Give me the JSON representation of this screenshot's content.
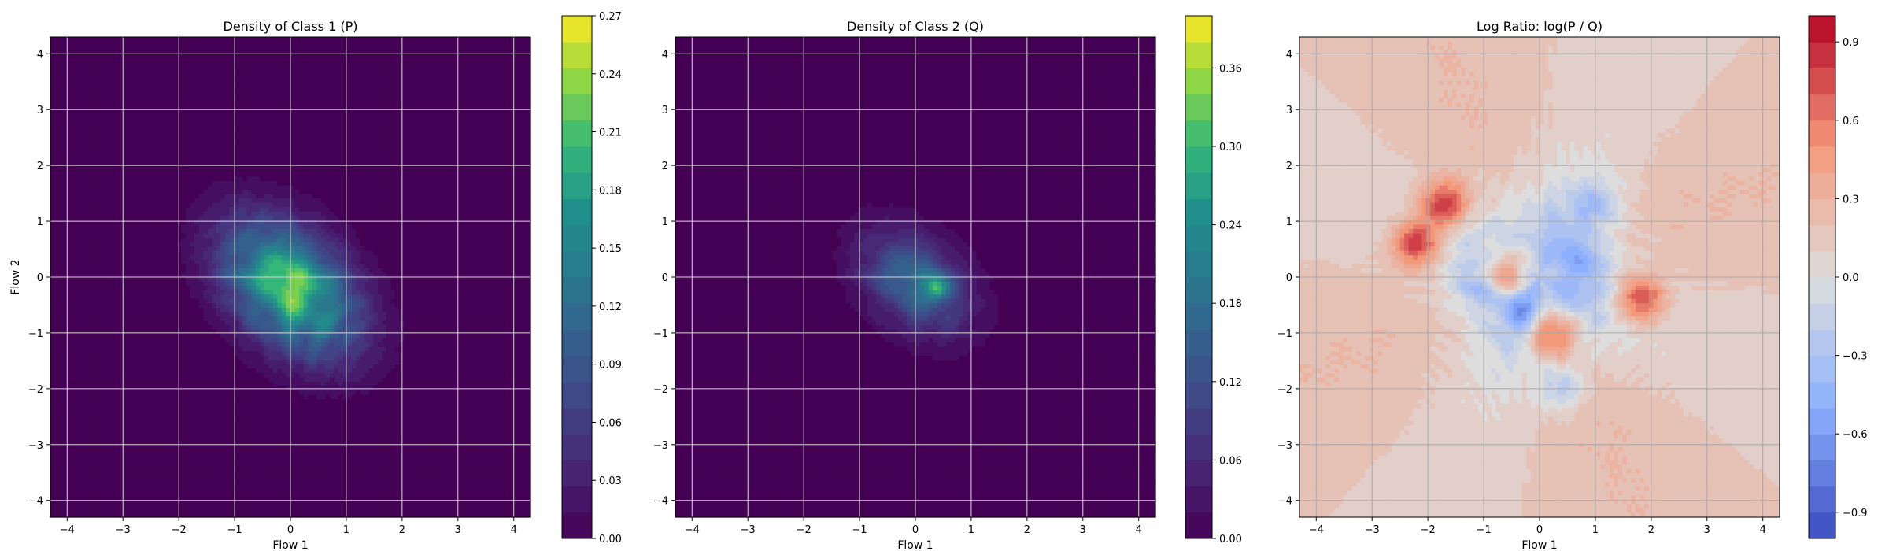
{
  "chart_data": [
    {
      "type": "heatmap",
      "title": "Density of Class 1 (P)",
      "xlabel": "Flow 1",
      "ylabel": "Flow 2",
      "xlim": [
        -4.3,
        4.3
      ],
      "ylim": [
        -4.3,
        4.3
      ],
      "xticks": [
        "−4",
        "−3",
        "−2",
        "−1",
        "0",
        "1",
        "2",
        "3",
        "4"
      ],
      "yticks": [
        "−4",
        "−3",
        "−2",
        "−1",
        "0",
        "1",
        "2",
        "3",
        "4"
      ],
      "grid": true,
      "colormap": "viridis",
      "colorbar": {
        "range": [
          0.0,
          0.27
        ],
        "ticks": [
          "0.00",
          "0.03",
          "0.06",
          "0.09",
          "0.12",
          "0.15",
          "0.18",
          "0.21",
          "0.24",
          "0.27"
        ]
      },
      "density": {
        "center": [
          0.0,
          -0.2
        ],
        "spread": [
          1.0,
          0.65
        ],
        "angle_deg": -45,
        "peak": 0.26
      }
    },
    {
      "type": "heatmap",
      "title": "Density of Class 2 (Q)",
      "xlabel": "Flow 1",
      "ylabel": "",
      "xlim": [
        -4.3,
        4.3
      ],
      "ylim": [
        -4.3,
        4.3
      ],
      "xticks": [
        "−4",
        "−3",
        "−2",
        "−1",
        "0",
        "1",
        "2",
        "3",
        "4"
      ],
      "yticks": [
        "−4",
        "−3",
        "−2",
        "−1",
        "0",
        "1",
        "2",
        "3",
        "4"
      ],
      "grid": true,
      "colormap": "viridis",
      "colorbar": {
        "range": [
          0.0,
          0.4
        ],
        "ticks": [
          "0.00",
          "0.06",
          "0.12",
          "0.18",
          "0.24",
          "0.30",
          "0.36"
        ]
      },
      "density": {
        "center": [
          0.0,
          -0.1
        ],
        "spread": [
          0.8,
          0.55
        ],
        "angle_deg": -40,
        "peak": 0.38,
        "hotspot": [
          0.4,
          -0.2
        ]
      }
    },
    {
      "type": "heatmap",
      "title": "Log Ratio: log(P / Q)",
      "xlabel": "Flow 1",
      "ylabel": "",
      "xlim": [
        -4.3,
        4.3
      ],
      "ylim": [
        -4.3,
        4.3
      ],
      "xticks": [
        "−4",
        "−3",
        "−2",
        "−1",
        "0",
        "1",
        "2",
        "3",
        "4"
      ],
      "yticks": [
        "−4",
        "−3",
        "−2",
        "−1",
        "0",
        "1",
        "2",
        "3",
        "4"
      ],
      "grid": true,
      "colormap": "coolwarm",
      "colorbar": {
        "range": [
          -1.0,
          1.0
        ],
        "ticks": [
          "−0.9",
          "−0.6",
          "−0.3",
          "0.0",
          "0.3",
          "0.6",
          "0.9"
        ]
      },
      "red_spots": [
        [
          -2.2,
          0.6
        ],
        [
          -1.7,
          1.3
        ],
        [
          -0.6,
          0.1
        ],
        [
          1.8,
          -0.4
        ],
        [
          0.2,
          -1.0
        ]
      ],
      "blue_spots": [
        [
          -1.1,
          -0.2
        ],
        [
          1.0,
          1.3
        ],
        [
          0.8,
          0.3
        ],
        [
          0.4,
          -2.0
        ],
        [
          -0.3,
          -0.6
        ]
      ]
    }
  ]
}
